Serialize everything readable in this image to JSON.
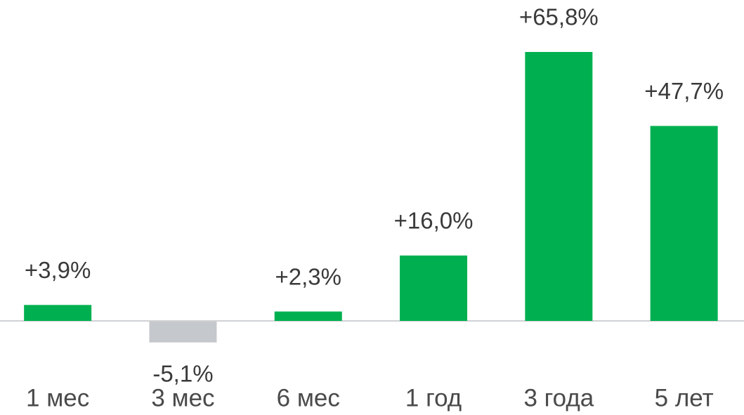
{
  "chart_data": {
    "type": "bar",
    "categories": [
      "1 мес",
      "3 мес",
      "6 мес",
      "1 год",
      "3 года",
      "5 лет"
    ],
    "values": [
      3.9,
      -5.1,
      2.3,
      16.0,
      65.8,
      47.7
    ],
    "value_labels": [
      "+3,9%",
      "-5,1%",
      "+2,3%",
      "+16,0%",
      "+65,8%",
      "+47,7%"
    ],
    "colors": [
      "#00b050",
      "#c5c8cc",
      "#00b050",
      "#00b050",
      "#00b050",
      "#00b050"
    ]
  }
}
